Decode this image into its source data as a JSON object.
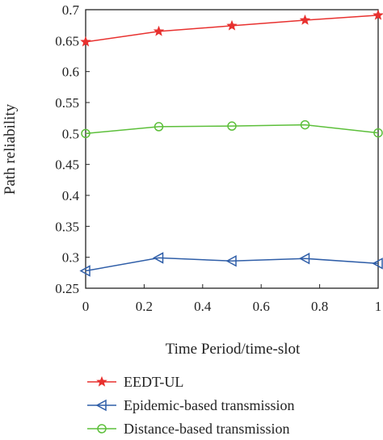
{
  "chart_data": {
    "type": "line",
    "xlabel": "Time Period/time-slot",
    "ylabel": "Path reliability",
    "xlim": [
      0,
      1
    ],
    "ylim": [
      0.25,
      0.7
    ],
    "x_ticks": [
      0,
      0.2,
      0.4,
      0.6,
      0.8,
      1
    ],
    "x_tick_labels": [
      "0",
      "0.2",
      "0.4",
      "0.6",
      "0.8",
      "1"
    ],
    "y_ticks": [
      0.25,
      0.3,
      0.35,
      0.4,
      0.45,
      0.5,
      0.55,
      0.6,
      0.65,
      0.7
    ],
    "y_tick_labels": [
      "0.25",
      "0.3",
      "0.35",
      "0.4",
      "0.45",
      "0.5",
      "0.55",
      "0.6",
      "0.65",
      "0.7"
    ],
    "grid": false,
    "legend_position": "bottom",
    "x": [
      0,
      0.25,
      0.5,
      0.75,
      1
    ],
    "series": [
      {
        "name": "EEDT-UL",
        "values": [
          0.648,
          0.665,
          0.674,
          0.683,
          0.691
        ],
        "color": "#e8312f",
        "marker": "star"
      },
      {
        "name": "Epidemic-based transmission",
        "values": [
          0.278,
          0.299,
          0.294,
          0.298,
          0.29
        ],
        "color": "#2f5ea8",
        "marker": "triangle-left"
      },
      {
        "name": "Distance-based transmission",
        "values": [
          0.5,
          0.511,
          0.512,
          0.514,
          0.501
        ],
        "color": "#5cbf3a",
        "marker": "circle"
      }
    ]
  }
}
